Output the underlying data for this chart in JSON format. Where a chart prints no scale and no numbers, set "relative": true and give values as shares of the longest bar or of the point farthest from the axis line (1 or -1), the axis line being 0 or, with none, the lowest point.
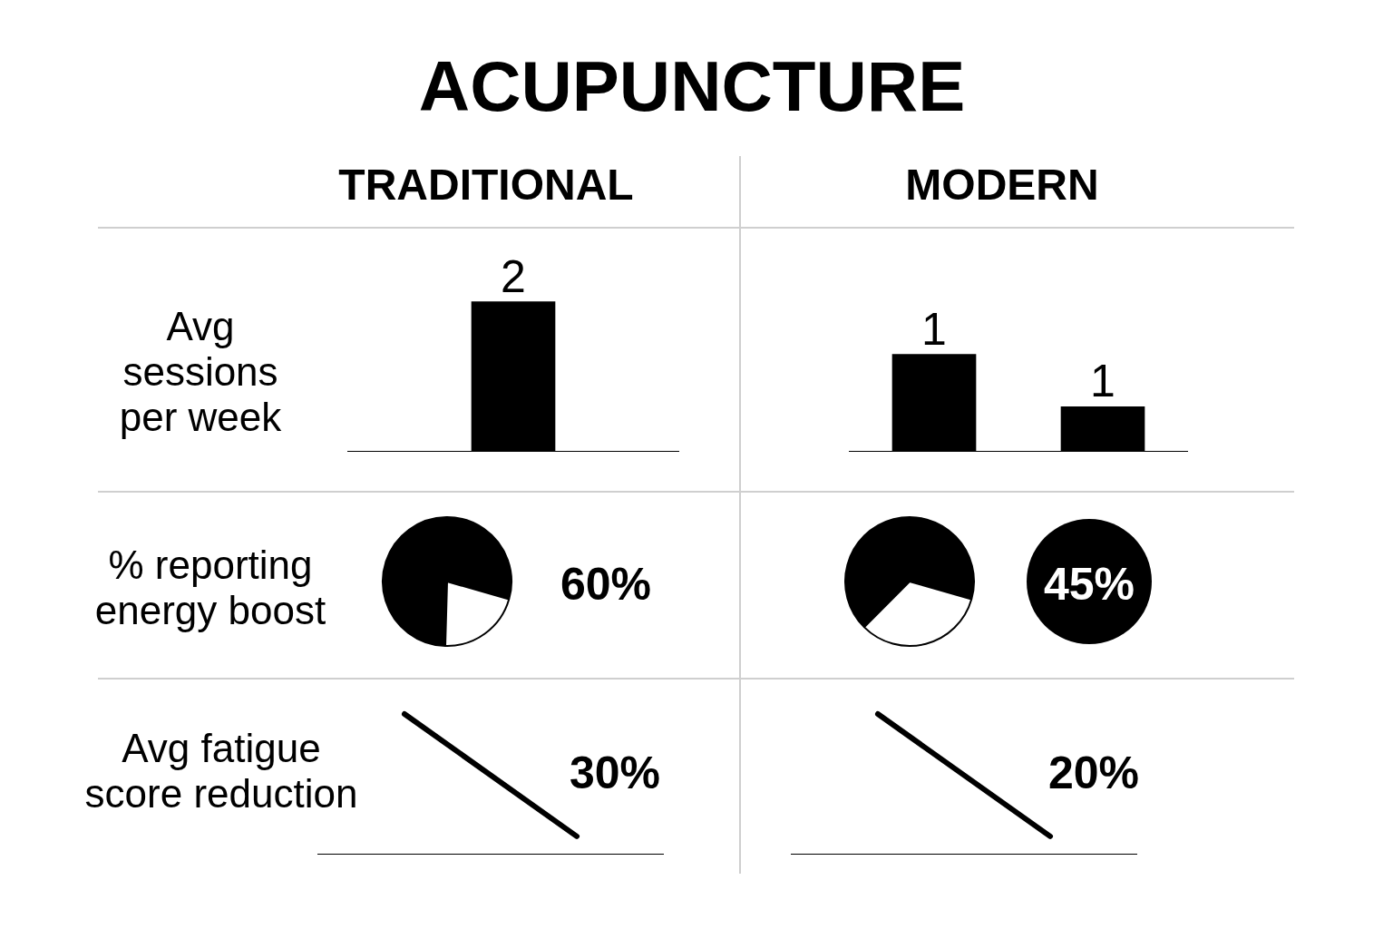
{
  "chart_data": [
    {
      "type": "other",
      "title": "ACUPUNCTURE"
    },
    {
      "type": "bar",
      "title": "TRADITIONAL",
      "ylabel": "Avg sessions per week",
      "categories": [
        null
      ],
      "values": [
        2
      ],
      "value_labels": [
        "2"
      ],
      "color": "#000000",
      "ylim": [
        0,
        3
      ],
      "tick_labels": false
    },
    {
      "type": "bar",
      "title": "MODERN",
      "categories": [
        null,
        null
      ],
      "values": [
        1.3,
        0.6
      ],
      "value_labels": [
        "1",
        "1"
      ],
      "color": "#000000",
      "ylim": [
        0,
        3
      ],
      "tick_labels": false
    },
    {
      "type": "pie",
      "title": "% reporting energy boost",
      "categories": [
        null,
        null
      ],
      "values": [
        79,
        21
      ],
      "colors": [
        "#000000",
        "#ffffff"
      ],
      "annotations": [
        "60%"
      ]
    },
    {
      "type": "pie",
      "categories": [
        null,
        null
      ],
      "values": [
        67,
        33
      ],
      "colors": [
        "#000000",
        "#ffffff"
      ],
      "annotations": [
        "45%"
      ]
    },
    {
      "type": "line",
      "ylabel": "Avg fatigue score reduction",
      "categories": [
        null,
        null
      ],
      "values": [
        1,
        0.13
      ],
      "relative": true,
      "color": "#000000",
      "annotations": [
        "30%"
      ],
      "tick_labels": false
    },
    {
      "type": "line",
      "categories": [
        null,
        null
      ],
      "values": [
        1,
        0.13
      ],
      "relative": true,
      "color": "#000000",
      "annotations": [
        "20%"
      ],
      "tick_labels": false
    }
  ]
}
